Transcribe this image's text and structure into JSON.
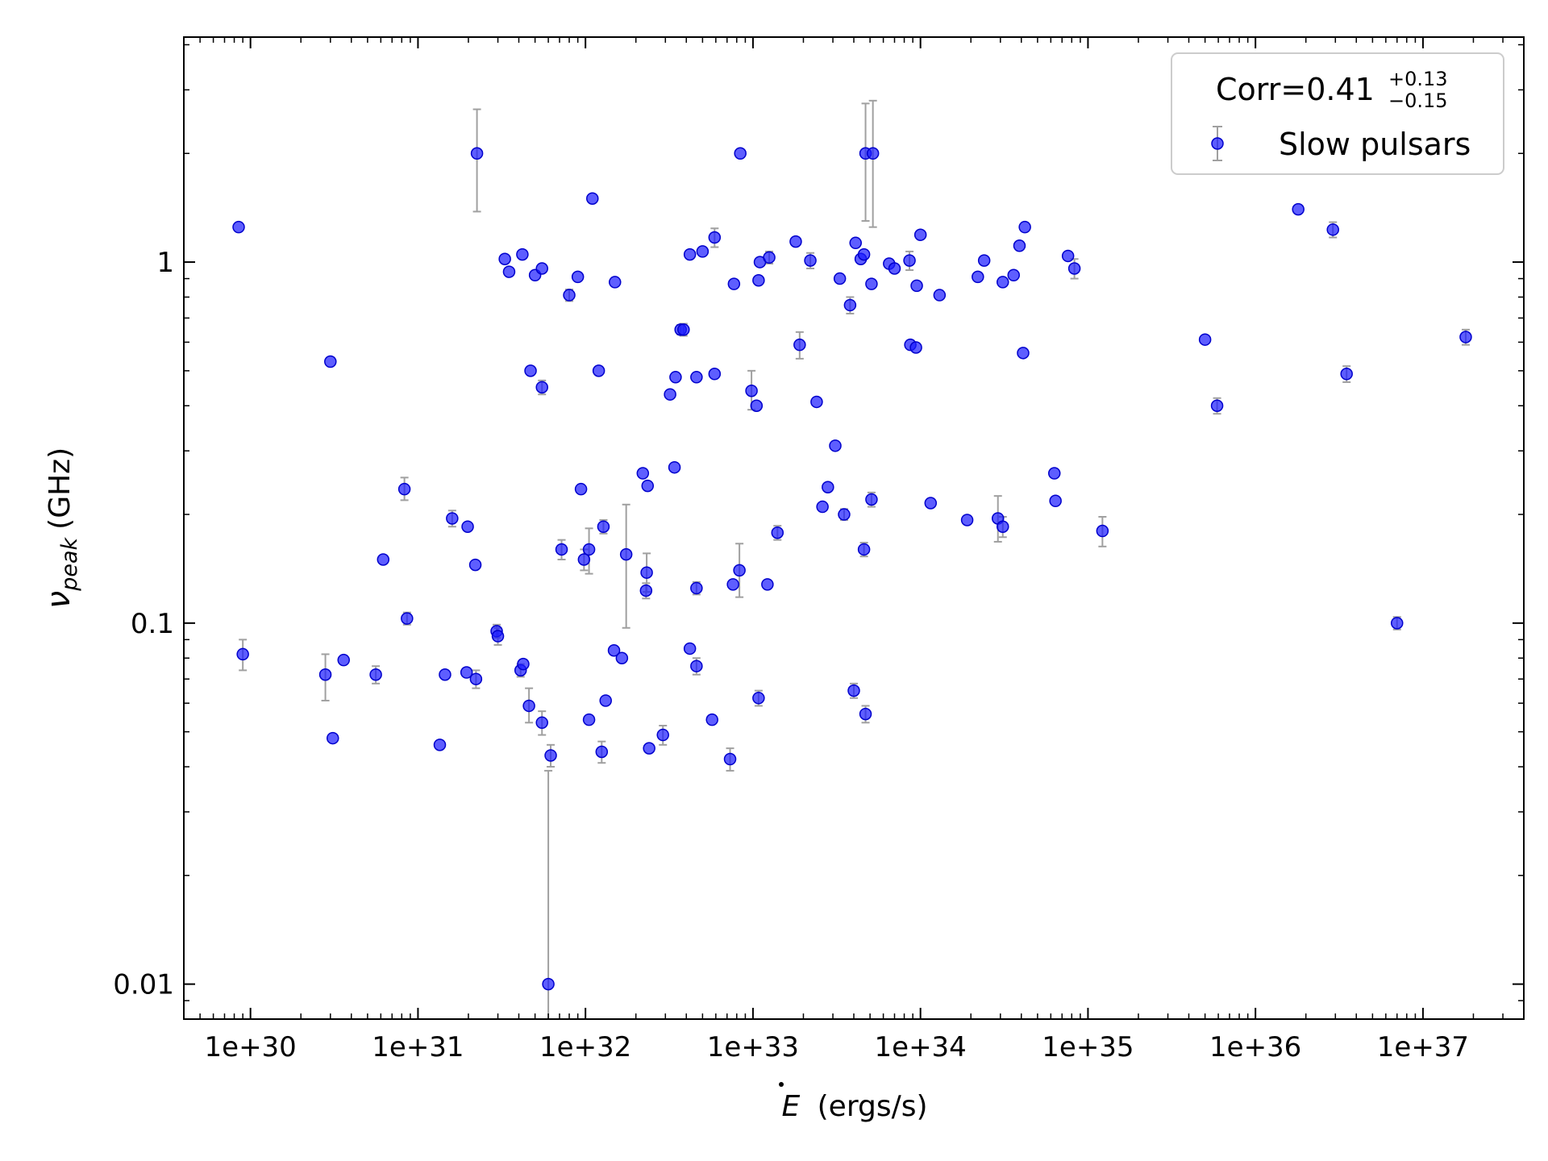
{
  "chart_data": {
    "type": "scatter",
    "xlabel_symbol": "E",
    "xlabel_unit": "(ergs/s)",
    "ylabel_symbol": "ν",
    "ylabel_sub": "peak",
    "ylabel_unit": "(GHz)",
    "xscale": "log",
    "yscale": "log",
    "xlim": [
      4e+29,
      4e+37
    ],
    "ylim": [
      0.008,
      4.2
    ],
    "x_ticks": [
      {
        "value": 1e+30,
        "label": "1e+30"
      },
      {
        "value": 1e+31,
        "label": "1e+31"
      },
      {
        "value": 1e+32,
        "label": "1e+32"
      },
      {
        "value": 1e+33,
        "label": "1e+33"
      },
      {
        "value": 1e+34,
        "label": "1e+34"
      },
      {
        "value": 1e+35,
        "label": "1e+35"
      },
      {
        "value": 1e+36,
        "label": "1e+36"
      },
      {
        "value": 1e+37,
        "label": "1e+37"
      }
    ],
    "y_ticks": [
      {
        "value": 0.01,
        "label": "0.01"
      },
      {
        "value": 0.1,
        "label": "0.1"
      },
      {
        "value": 1,
        "label": "1"
      }
    ],
    "grid": false,
    "legend": {
      "placement": "top-right",
      "corr_main": "Corr=0.41",
      "corr_sup": "+0.13",
      "corr_sub": "−0.15"
    },
    "marker_color": "#1a1aff",
    "errorbar_color": "#a0a0a0",
    "series": [
      {
        "name": "Slow pulsars",
        "points": [
          [
            8.5e+29,
            1.25,
            0,
            0
          ],
          [
            9e+29,
            0.082,
            0.008,
            0.008
          ],
          [
            2.8e+30,
            0.072,
            0.01,
            0.011
          ],
          [
            3e+30,
            0.53,
            0,
            0
          ],
          [
            3.1e+30,
            0.048,
            0,
            0
          ],
          [
            3.6e+30,
            0.079,
            0,
            0
          ],
          [
            5.6e+30,
            0.072,
            0.004,
            0.004
          ],
          [
            6.2e+30,
            0.15,
            0,
            0
          ],
          [
            8.3e+30,
            0.235,
            0.018,
            0.016
          ],
          [
            8.6e+30,
            0.103,
            0.004,
            0.004
          ],
          [
            1.35e+31,
            0.046,
            0,
            0
          ],
          [
            1.45e+31,
            0.072,
            0,
            0
          ],
          [
            1.6e+31,
            0.195,
            0.01,
            0.01
          ],
          [
            1.95e+31,
            0.073,
            0,
            0
          ],
          [
            1.98e+31,
            0.185,
            0,
            0
          ],
          [
            2.2e+31,
            0.145,
            0,
            0
          ],
          [
            2.22e+31,
            0.07,
            0.004,
            0.004
          ],
          [
            2.25e+31,
            2.0,
            0.65,
            0.62
          ],
          [
            2.95e+31,
            0.095,
            0.004,
            0.004
          ],
          [
            3e+31,
            0.092,
            0.005,
            0.005
          ],
          [
            3.3e+31,
            1.02,
            0,
            0
          ],
          [
            3.5e+31,
            0.94,
            0,
            0
          ],
          [
            4.1e+31,
            0.074,
            0.003,
            0.003
          ],
          [
            4.2e+31,
            1.05,
            0,
            0
          ],
          [
            4.25e+31,
            0.077,
            0,
            0
          ],
          [
            4.6e+31,
            0.059,
            0.007,
            0.006
          ],
          [
            4.7e+31,
            0.5,
            0,
            0
          ],
          [
            5e+31,
            0.92,
            0,
            0
          ],
          [
            5.5e+31,
            0.053,
            0.004,
            0.004
          ],
          [
            5.5e+31,
            0.45,
            0.02,
            0.02
          ],
          [
            5.5e+31,
            0.96,
            0,
            0
          ],
          [
            6e+31,
            0.01,
            0.029,
            0.003
          ],
          [
            6.2e+31,
            0.043,
            0.003,
            0.003
          ],
          [
            7.2e+31,
            0.16,
            0.01,
            0.01
          ],
          [
            8e+31,
            0.81,
            0.03,
            0.03
          ],
          [
            9e+31,
            0.91,
            0,
            0
          ],
          [
            9.4e+31,
            0.235,
            0,
            0
          ],
          [
            9.8e+31,
            0.15,
            0.01,
            0.01
          ],
          [
            1.05e+32,
            0.054,
            0,
            0
          ],
          [
            1.05e+32,
            0.16,
            0.023,
            0.023
          ],
          [
            1.1e+32,
            1.5,
            0,
            0
          ],
          [
            1.2e+32,
            0.5,
            0,
            0
          ],
          [
            1.25e+32,
            0.044,
            0.003,
            0.003
          ],
          [
            1.28e+32,
            0.185,
            0.008,
            0.008
          ],
          [
            1.32e+32,
            0.061,
            0,
            0
          ],
          [
            1.48e+32,
            0.084,
            0,
            0
          ],
          [
            1.5e+32,
            0.88,
            0,
            0
          ],
          [
            1.65e+32,
            0.08,
            0,
            0
          ],
          [
            1.75e+32,
            0.155,
            0.058,
            0.058
          ],
          [
            2.2e+32,
            0.26,
            0,
            0
          ],
          [
            2.3e+32,
            0.123,
            0.006,
            0.006
          ],
          [
            2.32e+32,
            0.138,
            0.018,
            0.016
          ],
          [
            2.35e+32,
            0.24,
            0,
            0
          ],
          [
            2.4e+32,
            0.045,
            0,
            0
          ],
          [
            2.9e+32,
            0.049,
            0.003,
            0.003
          ],
          [
            3.2e+32,
            0.43,
            0,
            0
          ],
          [
            3.4e+32,
            0.27,
            0,
            0
          ],
          [
            3.45e+32,
            0.48,
            0,
            0
          ],
          [
            3.7e+32,
            0.65,
            0.02,
            0.02
          ],
          [
            3.85e+32,
            0.65,
            0.025,
            0.025
          ],
          [
            4.2e+32,
            1.05,
            0,
            0
          ],
          [
            4.2e+32,
            0.085,
            0,
            0
          ],
          [
            4.6e+32,
            0.076,
            0.004,
            0.004
          ],
          [
            4.6e+32,
            0.48,
            0,
            0
          ],
          [
            4.6e+32,
            0.125,
            0.005,
            0.005
          ],
          [
            5e+32,
            1.07,
            0,
            0
          ],
          [
            5.7e+32,
            0.054,
            0,
            0
          ],
          [
            5.9e+32,
            0.49,
            0,
            0
          ],
          [
            5.9e+32,
            1.17,
            0.07,
            0.07
          ],
          [
            7.3e+32,
            0.042,
            0.003,
            0.003
          ],
          [
            7.6e+32,
            0.128,
            0,
            0
          ],
          [
            7.7e+32,
            0.87,
            0,
            0
          ],
          [
            8.3e+32,
            0.14,
            0.026,
            0.022
          ],
          [
            8.4e+32,
            2.0,
            0,
            0
          ],
          [
            9.8e+32,
            0.44,
            0.06,
            0.05
          ],
          [
            1.05e+33,
            0.4,
            0,
            0
          ],
          [
            1.08e+33,
            0.89,
            0,
            0
          ],
          [
            1.08e+33,
            0.062,
            0.003,
            0.003
          ],
          [
            1.1e+33,
            1.0,
            0,
            0
          ],
          [
            1.22e+33,
            0.128,
            0,
            0
          ],
          [
            1.25e+33,
            1.03,
            0.04,
            0.04
          ],
          [
            1.4e+33,
            0.178,
            0.008,
            0.008
          ],
          [
            1.8e+33,
            1.14,
            0,
            0
          ],
          [
            1.9e+33,
            0.59,
            0.05,
            0.05
          ],
          [
            2.2e+33,
            1.01,
            0.05,
            0.05
          ],
          [
            2.4e+33,
            0.41,
            0,
            0
          ],
          [
            2.6e+33,
            0.21,
            0,
            0
          ],
          [
            2.8e+33,
            0.238,
            0,
            0
          ],
          [
            3.1e+33,
            0.31,
            0,
            0
          ],
          [
            3.3e+33,
            0.9,
            0,
            0
          ],
          [
            3.5e+33,
            0.2,
            0.007,
            0.007
          ],
          [
            3.8e+33,
            0.76,
            0.04,
            0.04
          ],
          [
            4e+33,
            0.065,
            0.003,
            0.003
          ],
          [
            4.1e+33,
            1.13,
            0,
            0
          ],
          [
            4.4e+33,
            1.02,
            0,
            0
          ],
          [
            4.6e+33,
            1.05,
            0,
            0
          ],
          [
            4.6e+33,
            0.16,
            0.007,
            0.007
          ],
          [
            4.7e+33,
            2.0,
            0.75,
            0.7
          ],
          [
            4.7e+33,
            0.056,
            0.003,
            0.003
          ],
          [
            5.1e+33,
            0.22,
            0.01,
            0.01
          ],
          [
            5.1e+33,
            0.87,
            0,
            0
          ],
          [
            5.2e+33,
            2.0,
            0.8,
            0.75
          ],
          [
            6.5e+33,
            0.99,
            0,
            0
          ],
          [
            7e+33,
            0.96,
            0,
            0
          ],
          [
            8.6e+33,
            1.01,
            0.06,
            0.06
          ],
          [
            8.7e+33,
            0.59,
            0,
            0
          ],
          [
            9.4e+33,
            0.58,
            0,
            0
          ],
          [
            9.5e+33,
            0.86,
            0,
            0
          ],
          [
            1e+34,
            1.19,
            0,
            0
          ],
          [
            1.15e+34,
            0.215,
            0,
            0
          ],
          [
            1.3e+34,
            0.81,
            0,
            0
          ],
          [
            1.9e+34,
            0.193,
            0,
            0
          ],
          [
            2.2e+34,
            0.91,
            0,
            0
          ],
          [
            2.4e+34,
            1.01,
            0,
            0
          ],
          [
            2.9e+34,
            0.195,
            0.03,
            0.027
          ],
          [
            3.1e+34,
            0.185,
            0.012,
            0.012
          ],
          [
            3.1e+34,
            0.88,
            0,
            0
          ],
          [
            3.6e+34,
            0.92,
            0,
            0
          ],
          [
            3.9e+34,
            1.11,
            0,
            0
          ],
          [
            4.1e+34,
            0.56,
            0,
            0
          ],
          [
            4.2e+34,
            1.25,
            0,
            0
          ],
          [
            6.3e+34,
            0.26,
            0,
            0
          ],
          [
            6.4e+34,
            0.218,
            0,
            0
          ],
          [
            7.6e+34,
            1.04,
            0,
            0
          ],
          [
            8.3e+34,
            0.96,
            0.06,
            0.06
          ],
          [
            1.22e+35,
            0.18,
            0.017,
            0.017
          ],
          [
            5e+35,
            0.61,
            0,
            0
          ],
          [
            5.9e+35,
            0.4,
            0.02,
            0.02
          ],
          [
            1.8e+36,
            1.4,
            0,
            0
          ],
          [
            2.9e+36,
            1.23,
            0.06,
            0.06
          ],
          [
            3.5e+36,
            0.49,
            0.025,
            0.025
          ],
          [
            7e+36,
            0.1,
            0.004,
            0.004
          ],
          [
            1.8e+37,
            0.62,
            0.03,
            0.03
          ]
        ]
      }
    ]
  }
}
